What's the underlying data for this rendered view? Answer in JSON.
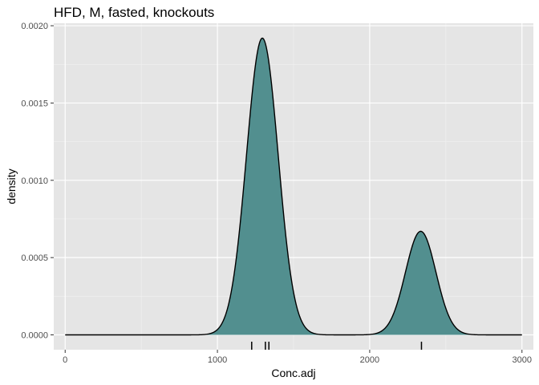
{
  "chart_data": {
    "type": "area",
    "title": "HFD, M, fasted, knockouts",
    "xlabel": "Conc.adj",
    "ylabel": "density",
    "xlim": [
      -75,
      3075
    ],
    "ylim": [
      -9.6e-05,
      0.002016
    ],
    "x_ticks": [
      0,
      1000,
      2000,
      3000
    ],
    "x_tick_labels": [
      "0",
      "1000",
      "2000",
      "3000"
    ],
    "y_ticks": [
      0,
      0.0005,
      0.001,
      0.0015,
      0.002
    ],
    "y_tick_labels": [
      "0.0000",
      "0.0005",
      "0.0010",
      "0.0015",
      "0.0020"
    ],
    "x_minor_ticks": [
      500,
      1500,
      2500
    ],
    "y_minor_ticks": [
      0.00025,
      0.00075,
      0.00125,
      0.00175
    ],
    "density_range": [
      0,
      3000
    ],
    "components": [
      {
        "mean": 1295,
        "sd": 104,
        "peak": 0.00192
      },
      {
        "mean": 2335,
        "sd": 100,
        "peak": 0.00067
      }
    ],
    "rug": [
      1225,
      1315,
      1338,
      2340
    ],
    "fill_color": "#528f8f",
    "line_color": "#000000",
    "panel_background": "#e5e5e5",
    "grid": true,
    "legend": "none"
  }
}
